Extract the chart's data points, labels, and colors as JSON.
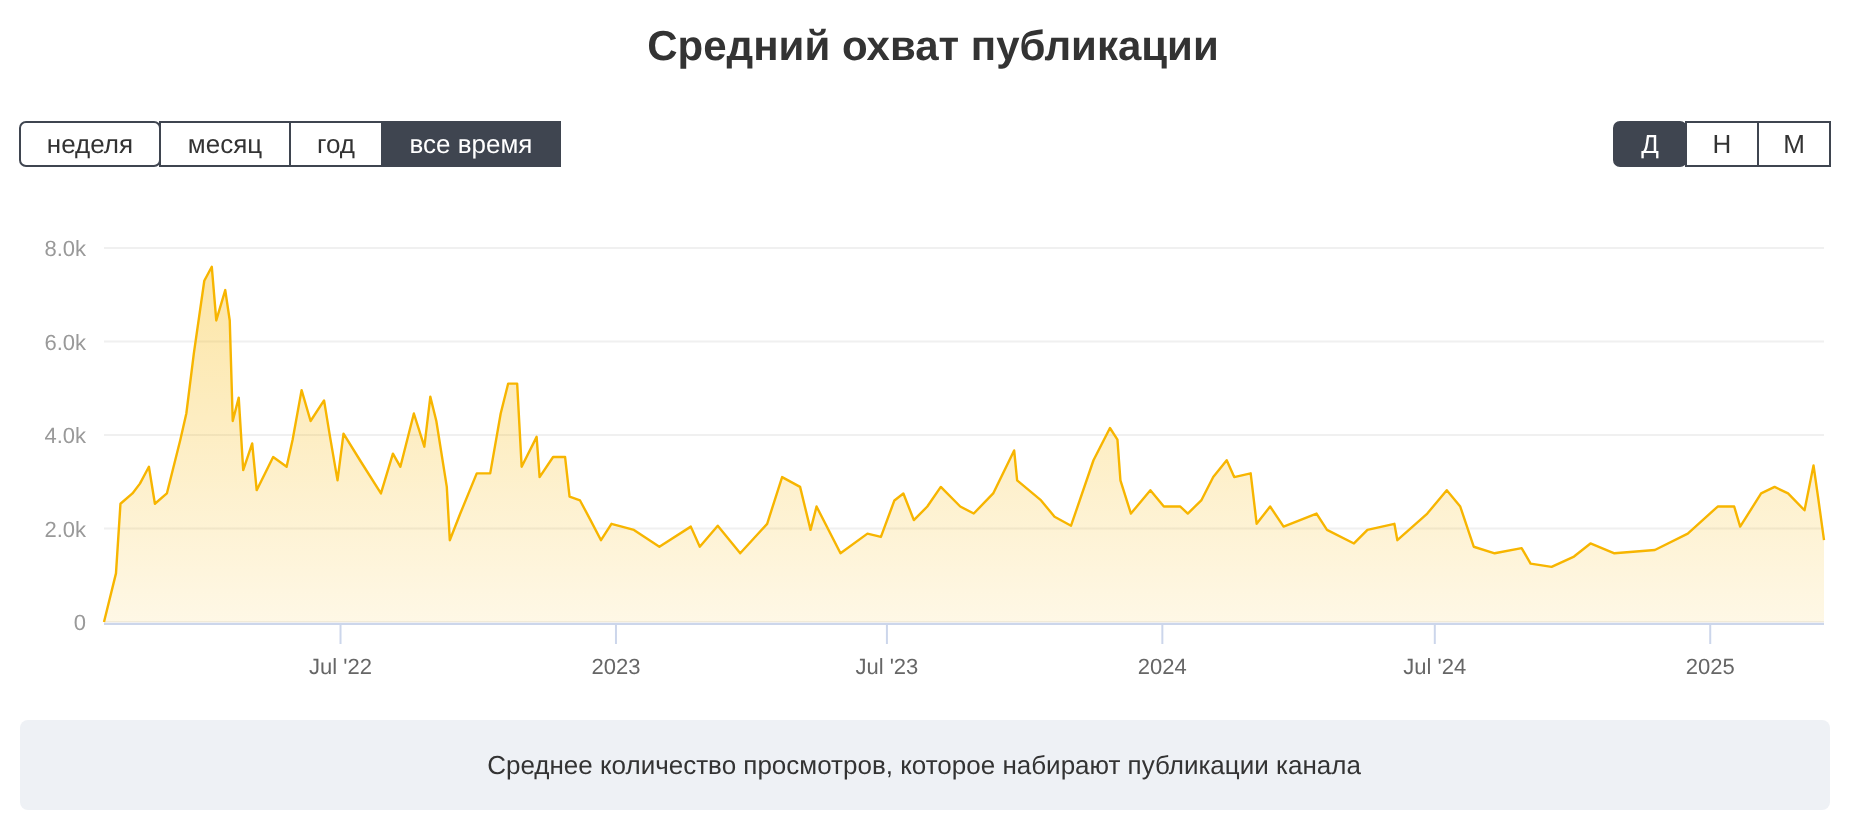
{
  "chart_data": {
    "type": "area",
    "title": "Средний охват публикации",
    "annotations": [
      "неделя",
      "месяц",
      "год",
      "все время",
      "Д",
      "Н",
      "М",
      "Среднее количество просмотров, которое набирают публикации канала"
    ],
    "x": [
      "2022-01-24",
      "2022-02-01",
      "2022-02-04",
      "2022-02-12",
      "2022-02-17",
      "2022-02-23",
      "2022-02-27",
      "2022-03-07",
      "2022-03-16",
      "2022-03-20",
      "2022-03-25",
      "2022-04-01",
      "2022-04-06",
      "2022-04-09",
      "2022-04-15",
      "2022-04-18",
      "2022-04-20",
      "2022-04-24",
      "2022-04-27",
      "2022-05-03",
      "2022-05-06",
      "2022-05-17",
      "2022-05-26",
      "2022-05-30",
      "2022-06-05",
      "2022-06-11",
      "2022-06-20",
      "2022-06-24",
      "2022-06-29",
      "2022-07-03",
      "2022-07-14",
      "2022-07-28",
      "2022-08-05",
      "2022-08-10",
      "2022-08-19",
      "2022-08-26",
      "2022-08-30",
      "2022-09-03",
      "2022-09-10",
      "2022-09-12",
      "2022-09-19",
      "2022-09-30",
      "2022-10-09",
      "2022-10-16",
      "2022-10-21",
      "2022-10-27",
      "2022-10-30",
      "2022-11-09",
      "2022-11-11",
      "2022-11-20",
      "2022-11-28",
      "2022-12-01",
      "2022-12-08",
      "2022-12-15",
      "2022-12-22",
      "2022-12-29",
      "2023-01-13",
      "2023-01-30",
      "2023-02-20",
      "2023-02-26",
      "2023-03-10",
      "2023-03-25",
      "2023-04-12",
      "2023-04-22",
      "2023-05-04",
      "2023-05-11",
      "2023-05-15",
      "2023-05-31",
      "2023-06-18",
      "2023-06-27",
      "2023-07-06",
      "2023-07-12",
      "2023-07-19",
      "2023-07-28",
      "2023-08-06",
      "2023-08-19",
      "2023-08-28",
      "2023-09-10",
      "2023-09-24",
      "2023-09-26",
      "2023-10-12",
      "2023-10-21",
      "2023-11-01",
      "2023-11-16",
      "2023-11-27",
      "2023-12-02",
      "2023-12-04",
      "2023-12-11",
      "2023-12-24",
      "2024-01-02",
      "2024-01-13",
      "2024-01-18",
      "2024-01-27",
      "2024-02-04",
      "2024-02-13",
      "2024-02-18",
      "2024-02-29",
      "2024-03-04",
      "2024-03-13",
      "2024-03-22",
      "2024-04-13",
      "2024-04-20",
      "2024-05-08",
      "2024-05-17",
      "2024-06-04",
      "2024-06-06",
      "2024-06-26",
      "2024-07-09",
      "2024-07-18",
      "2024-07-27",
      "2024-08-10",
      "2024-08-28",
      "2024-09-03",
      "2024-09-17",
      "2024-10-02",
      "2024-10-13",
      "2024-10-29",
      "2024-11-25",
      "2024-12-17",
      "2025-01-06",
      "2025-01-17",
      "2025-01-21",
      "2025-02-04",
      "2025-02-13",
      "2025-02-22",
      "2025-03-05",
      "2025-03-11",
      "2025-03-14",
      "2025-03-18"
    ],
    "series": [
      {
        "color": "#f7b500",
        "values": [
          0,
          1040,
          2530,
          2750,
          2960,
          3320,
          2530,
          2750,
          3900,
          4460,
          5740,
          7300,
          7600,
          6450,
          7100,
          6450,
          4300,
          4800,
          3250,
          3820,
          2820,
          3530,
          3320,
          3900,
          4960,
          4300,
          4740,
          3960,
          3030,
          4030,
          3460,
          2750,
          3600,
          3320,
          4460,
          3750,
          4820,
          4300,
          2890,
          1750,
          2320,
          3180,
          3180,
          4460,
          5100,
          5100,
          3320,
          3960,
          3100,
          3530,
          3530,
          2680,
          2600,
          2180,
          1750,
          2100,
          1970,
          1610,
          2040,
          1610,
          2060,
          1470,
          2100,
          3100,
          2890,
          1970,
          2470,
          1470,
          1890,
          1820,
          2600,
          2750,
          2180,
          2470,
          2890,
          2470,
          2320,
          2750,
          3670,
          3030,
          2600,
          2250,
          2060,
          3460,
          4150,
          3900,
          3030,
          2320,
          2820,
          2470,
          2470,
          2320,
          2600,
          3100,
          3460,
          3100,
          3180,
          2100,
          2470,
          2040,
          2320,
          1970,
          1680,
          1970,
          2100,
          1750,
          2320,
          2820,
          2470,
          1610,
          1470,
          1580,
          1250,
          1180,
          1400,
          1680,
          1470,
          1540,
          1890,
          2470,
          2470,
          2040,
          2750,
          2890,
          2750,
          2390,
          3350,
          2680,
          1750
        ]
      }
    ],
    "xlim": [
      "2022-01-24",
      "2025-03-18"
    ],
    "xticks": [
      {
        "value": "2022-07-01",
        "label": "Jul '22"
      },
      {
        "value": "2023-01-01",
        "label": "2023"
      },
      {
        "value": "2023-07-01",
        "label": "Jul '23"
      },
      {
        "value": "2024-01-01",
        "label": "2024"
      },
      {
        "value": "2024-07-01",
        "label": "Jul '24"
      },
      {
        "value": "2025-01-01",
        "label": "2025"
      }
    ],
    "ylim": [
      0,
      8000
    ],
    "yticks": [
      {
        "value": 0,
        "label": "0"
      },
      {
        "value": 2000,
        "label": "2.0k"
      },
      {
        "value": 4000,
        "label": "4.0k"
      },
      {
        "value": 6000,
        "label": "6.0k"
      },
      {
        "value": 8000,
        "label": "8.0k"
      }
    ],
    "grid": "y",
    "line_style": "solid"
  }
}
